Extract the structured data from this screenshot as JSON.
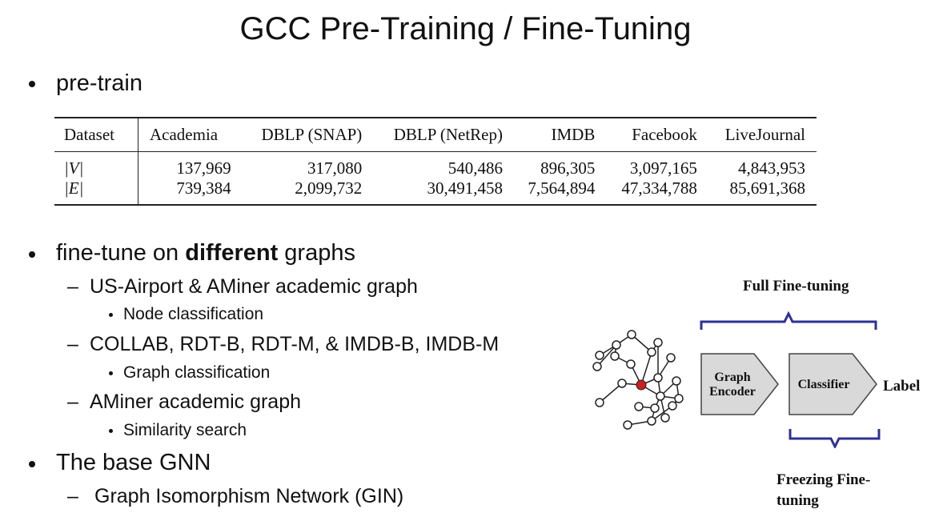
{
  "slide": {
    "title": "GCC Pre-Training / Fine-Tuning",
    "bullet1": "pre-train",
    "bullet2_pre": "fine-tune on ",
    "bullet2_bold": "different",
    "bullet2_post": " graphs",
    "dash1": "US-Airport & AMiner academic graph",
    "dash1_sub": "Node classification",
    "dash2": "COLLAB, RDT-B, RDT-M, & IMDB-B, IMDB-M",
    "dash2_sub": "Graph classification",
    "dash3": "AMiner academic graph",
    "dash3_sub": "Similarity search",
    "bullet3": "The base GNN",
    "dash4": "Graph Isomorphism Network (GIN)"
  },
  "table": {
    "header": [
      "Dataset",
      "Academia",
      "DBLP (SNAP)",
      "DBLP (NetRep)",
      "IMDB",
      "Facebook",
      "LiveJournal"
    ],
    "rows": [
      [
        "|V|",
        "137,969",
        "317,080",
        "540,486",
        "896,305",
        "3,097,165",
        "4,843,953"
      ],
      [
        "|E|",
        "739,384",
        "2,099,732",
        "30,491,458",
        "7,564,894",
        "47,334,788",
        "85,691,368"
      ]
    ]
  },
  "diagram": {
    "full_label": "Full Fine-tuning",
    "encoder_label_1": "Graph",
    "encoder_label_2": "Encoder",
    "classifier_label": "Classifier",
    "output_label": "Label",
    "freeze_label_1": "Freezing Fine-",
    "freeze_label_2": "tuning",
    "bracket_color": "#2e3192",
    "box_fill": "#d9d9d9",
    "center_node_color": "#cc1f1f"
  }
}
